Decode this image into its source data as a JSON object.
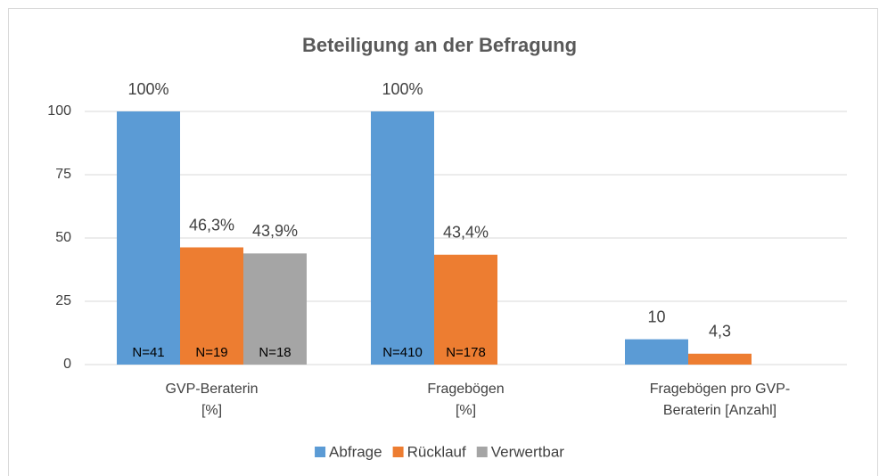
{
  "chart_data": {
    "type": "bar",
    "title": "Beteiligung an der Befragung",
    "categories": [
      [
        "GVP-Beraterin",
        "[%]"
      ],
      [
        "Fragebögen",
        "[%]"
      ],
      [
        "Fragebögen pro GVP-",
        "Beraterin [Anzahl]"
      ]
    ],
    "series": [
      {
        "name": "Abfrage",
        "color": "#5b9bd5",
        "values": [
          100,
          100,
          10
        ],
        "value_labels": [
          "100%",
          "100%",
          "10"
        ],
        "n_labels": [
          "N=41",
          "N=410",
          null
        ]
      },
      {
        "name": "Rücklauf",
        "color": "#ed7d31",
        "values": [
          46.3,
          43.4,
          4.3
        ],
        "value_labels": [
          "46,3%",
          "43,4%",
          "4,3"
        ],
        "n_labels": [
          "N=19",
          "N=178",
          null
        ]
      },
      {
        "name": "Verwertbar",
        "color": "#a5a5a5",
        "values": [
          43.9,
          null,
          null
        ],
        "value_labels": [
          "43,9%",
          null,
          null
        ],
        "n_labels": [
          "N=18",
          null,
          null
        ]
      }
    ],
    "ylim": [
      0,
      100
    ],
    "yticks": [
      0,
      25,
      50,
      75,
      100
    ],
    "grid": true,
    "legend": "bottom"
  }
}
